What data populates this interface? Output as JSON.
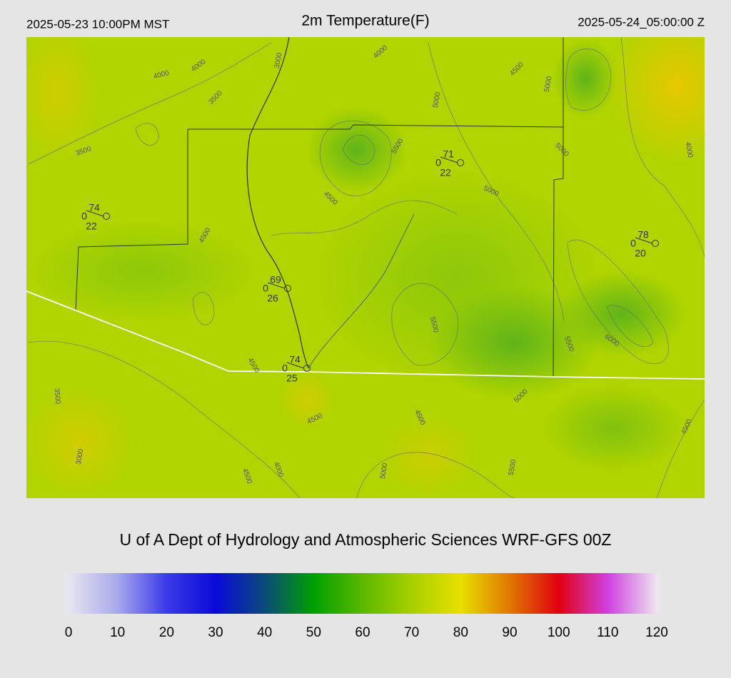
{
  "header": {
    "valid_local": "2025-05-23 10:00PM MST",
    "title": "2m Temperature(F)",
    "valid_utc": "2025-05-24_05:00:00 Z"
  },
  "map": {
    "contour_labels": [
      4000,
      4000,
      3000,
      3500,
      3500,
      4000,
      4500,
      5000,
      5000,
      5500,
      4500,
      4500,
      5000,
      5000,
      4000,
      5500,
      5500,
      6000,
      4500,
      3500,
      5000,
      4500,
      4500,
      4500,
      3000,
      4500,
      4000,
      5000,
      5500
    ],
    "stations": [
      {
        "temperature": 74,
        "wind": 0,
        "dewpoint": 22
      },
      {
        "temperature": 71,
        "wind": 0,
        "dewpoint": 22
      },
      {
        "temperature": 78,
        "wind": 0,
        "dewpoint": 20
      },
      {
        "temperature": 69,
        "wind": 0,
        "dewpoint": 26
      },
      {
        "temperature": 74,
        "wind": 0,
        "dewpoint": 25
      }
    ]
  },
  "footer": {
    "credit": "U of A Dept of Hydrology and Atmospheric Sciences WRF-GFS 00Z"
  },
  "colorbar": {
    "lim": [
      0,
      120
    ],
    "ticks": [
      0,
      10,
      20,
      30,
      40,
      50,
      60,
      70,
      80,
      90,
      100,
      110,
      120
    ],
    "colors": [
      "#e6e6f0",
      "#a8a8ec",
      "#3a3ae8",
      "#0a0ad8",
      "#0a4a7a",
      "#00a000",
      "#5cb800",
      "#a8d000",
      "#e8e000",
      "#e07800",
      "#e00010",
      "#d040e0",
      "#ece4ee"
    ]
  }
}
